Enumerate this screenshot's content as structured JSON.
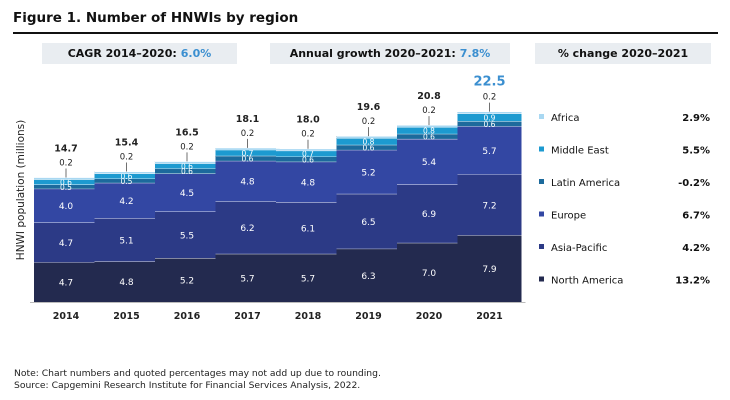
{
  "header": {
    "title": "Figure 1. Number of HNWIs by region",
    "cagr_label": "CAGR 2014–2020:",
    "cagr_value": "6.0%",
    "annual_label": "Annual growth 2020–2021:",
    "annual_value": "7.8%",
    "pct_label": "% change 2020–2021"
  },
  "colors": {
    "north_america": "#232a4f",
    "asia_pacific": "#2c3a86",
    "europe": "#3347a3",
    "latin_america": "#1c6a9c",
    "middle_east": "#1c9ad0",
    "africa": "#a9d8f2",
    "accent": "#3b8fd0"
  },
  "chart_data": {
    "type": "bar",
    "stacked": true,
    "ylabel": "HNWI population (millions)",
    "categories": [
      "2014",
      "2015",
      "2016",
      "2017",
      "2018",
      "2019",
      "2020",
      "2021"
    ],
    "totals": [
      "14.7",
      "15.4",
      "16.5",
      "18.1",
      "18.0",
      "19.6",
      "20.8",
      "22.5"
    ],
    "series": [
      {
        "name": "North America",
        "key": "north_america",
        "values": [
          4.7,
          4.8,
          5.2,
          5.7,
          5.7,
          6.3,
          7.0,
          7.9
        ],
        "labels": [
          "4.7",
          "4.8",
          "5.2",
          "5.7",
          "5.7",
          "6.3",
          "7.0",
          "7.9"
        ]
      },
      {
        "name": "Asia-Pacific",
        "key": "asia_pacific",
        "values": [
          4.7,
          5.1,
          5.5,
          6.2,
          6.1,
          6.5,
          6.9,
          7.2
        ],
        "labels": [
          "4.7",
          "5.1",
          "5.5",
          "6.2",
          "6.1",
          "6.5",
          "6.9",
          "7.2"
        ]
      },
      {
        "name": "Europe",
        "key": "europe",
        "values": [
          4.0,
          4.2,
          4.5,
          4.8,
          4.8,
          5.2,
          5.4,
          5.7
        ],
        "labels": [
          "4.0",
          "4.2",
          "4.5",
          "4.8",
          "4.8",
          "5.2",
          "5.4",
          "5.7"
        ]
      },
      {
        "name": "Latin America",
        "key": "latin_america",
        "values": [
          0.5,
          0.5,
          0.6,
          0.6,
          0.6,
          0.6,
          0.6,
          0.6
        ],
        "labels": [
          "0.5",
          "0.5",
          "0.6",
          "0.6",
          "0.6",
          "0.6",
          "0.6",
          "0.6"
        ]
      },
      {
        "name": "Middle East",
        "key": "middle_east",
        "values": [
          0.6,
          0.6,
          0.6,
          0.7,
          0.7,
          0.8,
          0.8,
          0.9
        ],
        "labels": [
          "0.6",
          "0.6",
          "0.6",
          "0.7",
          "0.7",
          "0.8",
          "0.8",
          "0.9"
        ]
      },
      {
        "name": "Africa",
        "key": "africa",
        "values": [
          0.2,
          0.2,
          0.2,
          0.2,
          0.2,
          0.2,
          0.2,
          0.2
        ],
        "labels": [
          "0.2",
          "0.2",
          "0.2",
          "0.2",
          "0.2",
          "0.2",
          "0.2",
          "0.2"
        ]
      }
    ],
    "legend": [
      {
        "name": "Africa",
        "key": "africa",
        "change": "2.9%"
      },
      {
        "name": "Middle East",
        "key": "middle_east",
        "change": "5.5%"
      },
      {
        "name": "Latin America",
        "key": "latin_america",
        "change": "-0.2%"
      },
      {
        "name": "Europe",
        "key": "europe",
        "change": "6.7%"
      },
      {
        "name": "Asia-Pacific",
        "key": "asia_pacific",
        "change": "4.2%"
      },
      {
        "name": "North America",
        "key": "north_america",
        "change": "13.2%"
      }
    ],
    "legend_position": "right"
  },
  "notes": {
    "line1": "Note: Chart numbers and quoted percentages may not add up due to rounding.",
    "line2": "Source: Capgemini Research Institute for Financial Services Analysis, 2022."
  }
}
